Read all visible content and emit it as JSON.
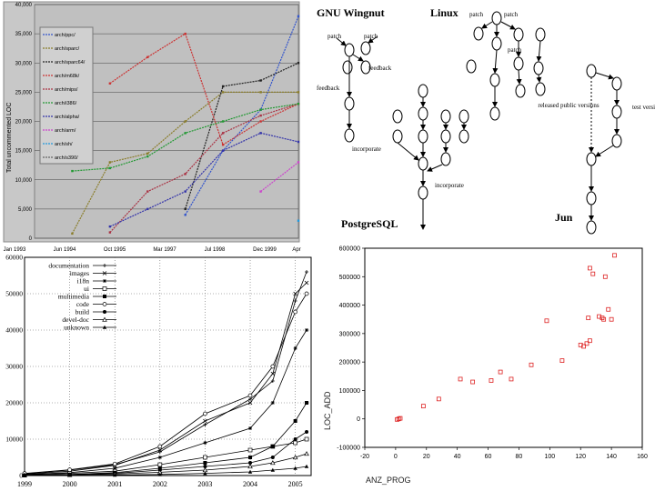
{
  "chart_data": [
    {
      "type": "line",
      "ylabel": "Total uncommented LOC",
      "ylim": [
        0,
        40000
      ],
      "y_ticks": [
        "0",
        "5,000",
        "10,000",
        "15,000",
        "20,000",
        "25,000",
        "30,000",
        "35,000",
        "40,000"
      ],
      "x_ticks": [
        "Jan 1993",
        "Jun 1994",
        "Oct 1995",
        "Mar 1997",
        "Jul 1998",
        "Dec 1999",
        "Apr"
      ],
      "x": [
        1993.0,
        1994.0,
        1995.0,
        1996.0,
        1997.0,
        1998.0,
        1999.0,
        2000.0
      ],
      "series": [
        {
          "name": "arch/ppc/",
          "color": "#3355cc",
          "values": [
            null,
            null,
            null,
            null,
            4000,
            15000,
            22000,
            38000
          ]
        },
        {
          "name": "arch/sparc/",
          "color": "#8a7d2a",
          "values": [
            null,
            800,
            13000,
            14500,
            20000,
            25000,
            25000,
            25000
          ]
        },
        {
          "name": "arch/sparc64/",
          "color": "#222222",
          "values": [
            null,
            null,
            null,
            null,
            5000,
            26000,
            27000,
            30000
          ]
        },
        {
          "name": "arch/m68k/",
          "color": "#cc3333",
          "values": [
            null,
            null,
            26500,
            31000,
            35000,
            16000,
            20000,
            23000
          ]
        },
        {
          "name": "arch/mips/",
          "color": "#aa3344",
          "values": [
            null,
            null,
            1000,
            8000,
            11000,
            18000,
            21000,
            23000
          ]
        },
        {
          "name": "arch/i386/",
          "color": "#229933",
          "values": [
            null,
            11500,
            12000,
            14000,
            18000,
            20000,
            22000,
            23000
          ]
        },
        {
          "name": "arch/alpha/",
          "color": "#3333aa",
          "values": [
            null,
            null,
            2000,
            5000,
            8000,
            15000,
            18000,
            16500
          ]
        },
        {
          "name": "arch/arm/",
          "color": "#cc44cc",
          "values": [
            null,
            null,
            null,
            null,
            null,
            null,
            8000,
            13000
          ]
        },
        {
          "name": "arch/sh/",
          "color": "#2299dd",
          "values": [
            null,
            null,
            null,
            null,
            null,
            null,
            null,
            3000
          ]
        },
        {
          "name": "arch/s390/",
          "color": "#666666",
          "values": [
            null,
            null,
            null,
            null,
            null,
            null,
            null,
            null
          ]
        }
      ]
    },
    {
      "type": "line",
      "ylim": [
        0,
        60000
      ],
      "y_ticks": [
        "0",
        "10000",
        "20000",
        "30000",
        "40000",
        "50000",
        "60000"
      ],
      "x_ticks": [
        "1999",
        "2000",
        "2001",
        "2002",
        "2003",
        "2004",
        "2005"
      ],
      "x": [
        1999.0,
        2000.0,
        2001.0,
        2002.0,
        2003.0,
        2004.0,
        2004.5,
        2005.0,
        2005.25
      ],
      "series": [
        {
          "name": "documentation",
          "marker": "+",
          "values": [
            500,
            1500,
            3000,
            6500,
            14000,
            21000,
            26000,
            48000,
            56000
          ]
        },
        {
          "name": "images",
          "marker": "x",
          "values": [
            400,
            1200,
            2800,
            7000,
            15000,
            20000,
            28000,
            50000,
            53000
          ]
        },
        {
          "name": "i18n",
          "marker": "*",
          "values": [
            300,
            800,
            2000,
            5000,
            9000,
            13000,
            20000,
            35000,
            40000
          ]
        },
        {
          "name": "ui",
          "marker": "square",
          "values": [
            200,
            600,
            1200,
            3000,
            5000,
            7000,
            8000,
            9000,
            10000
          ]
        },
        {
          "name": "multimedia",
          "marker": "filled-square",
          "values": [
            100,
            300,
            800,
            2000,
            3500,
            5000,
            8000,
            15000,
            20000
          ]
        },
        {
          "name": "code",
          "marker": "circle",
          "values": [
            600,
            1600,
            3200,
            8000,
            17000,
            22000,
            30000,
            45000,
            50000
          ]
        },
        {
          "name": "build",
          "marker": "filled-circle",
          "values": [
            100,
            200,
            600,
            1500,
            2500,
            3500,
            5000,
            10000,
            12000
          ]
        },
        {
          "name": "devel-doc",
          "marker": "triangle",
          "values": [
            50,
            150,
            400,
            900,
            1500,
            2500,
            3500,
            5000,
            6000
          ]
        },
        {
          "name": "unknown",
          "marker": "filled-triangle",
          "values": [
            20,
            60,
            150,
            300,
            600,
            1000,
            1500,
            2000,
            2500
          ]
        }
      ]
    },
    {
      "type": "scatter",
      "xlabel": "ANZ_PROG",
      "ylabel": "LOC_ADD",
      "xlim": [
        -20,
        160
      ],
      "ylim": [
        -100000,
        600000
      ],
      "x_ticks": [
        "-20",
        "0",
        "20",
        "40",
        "60",
        "80",
        "100",
        "120",
        "140",
        "160"
      ],
      "y_ticks": [
        "-100000",
        "0",
        "100000",
        "200000",
        "300000",
        "400000",
        "500000",
        "600000"
      ],
      "points": [
        [
          1,
          -2000
        ],
        [
          2,
          0
        ],
        [
          3,
          2000
        ],
        [
          18,
          45000
        ],
        [
          28,
          70000
        ],
        [
          42,
          140000
        ],
        [
          50,
          130000
        ],
        [
          62,
          135000
        ],
        [
          68,
          165000
        ],
        [
          75,
          140000
        ],
        [
          88,
          190000
        ],
        [
          98,
          345000
        ],
        [
          108,
          205000
        ],
        [
          120,
          260000
        ],
        [
          122,
          255000
        ],
        [
          124,
          265000
        ],
        [
          126,
          275000
        ],
        [
          125,
          355000
        ],
        [
          126,
          530000
        ],
        [
          128,
          510000
        ],
        [
          132,
          360000
        ],
        [
          134,
          355000
        ],
        [
          135,
          350000
        ],
        [
          136,
          500000
        ],
        [
          138,
          385000
        ],
        [
          140,
          350000
        ],
        [
          142,
          575000
        ]
      ]
    }
  ],
  "diagram": {
    "labels": {
      "gnu_wingnut": "GNU Wingnut",
      "linux": "Linux",
      "postgresql": "PostgreSQL",
      "jun": "Jun",
      "patch": "patch",
      "feedback": "feedback",
      "incorporate": "incorporate",
      "released_public_versions": "released public versions",
      "test_versions": "test versions"
    }
  }
}
